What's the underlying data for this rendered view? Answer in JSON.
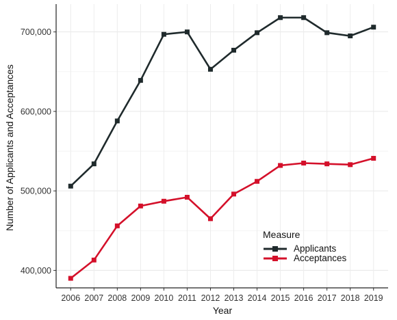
{
  "chart_data": {
    "type": "line",
    "xlabel": "Year",
    "ylabel": "Number of Applicants and Acceptances",
    "x": [
      2006,
      2007,
      2008,
      2009,
      2010,
      2011,
      2012,
      2013,
      2014,
      2015,
      2016,
      2017,
      2018,
      2019
    ],
    "x_tick_labels": [
      "2006",
      "2007",
      "2008",
      "2009",
      "2010",
      "2011",
      "2012",
      "2013",
      "2014",
      "2015",
      "2016",
      "2017",
      "2018",
      "2019"
    ],
    "y_ticks": [
      400000,
      500000,
      600000,
      700000
    ],
    "y_tick_labels": [
      "400,000",
      "500,000",
      "600,000",
      "700,000"
    ],
    "ylim": [
      378000,
      735000
    ],
    "grid": true,
    "legend": {
      "title": "Measure",
      "position": "bottom-right",
      "entries": [
        "Applicants",
        "Acceptances"
      ]
    },
    "series": [
      {
        "name": "Applicants",
        "color": "#1f2a2c",
        "values": [
          506000,
          534000,
          588000,
          639000,
          697000,
          700000,
          653000,
          677000,
          699000,
          718000,
          718000,
          699000,
          695000,
          706000
        ]
      },
      {
        "name": "Acceptances",
        "color": "#d4102a",
        "values": [
          390000,
          413000,
          456000,
          481000,
          487000,
          492000,
          465000,
          496000,
          512000,
          532000,
          535000,
          534000,
          533000,
          541000
        ]
      }
    ]
  }
}
